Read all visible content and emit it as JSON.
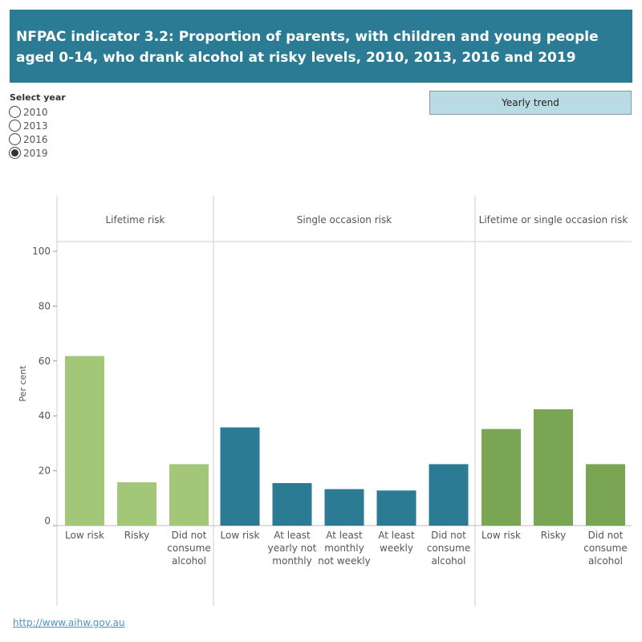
{
  "header": {
    "title": "NFPAC indicator 3.2: Proportion of parents, with children and young people aged 0-14, who drank alcohol at risky levels, 2010, 2013, 2016 and 2019"
  },
  "filter": {
    "label": "Select year",
    "options": [
      "2010",
      "2013",
      "2016",
      "2019"
    ],
    "selected": "2019"
  },
  "trend_button": {
    "label": "Yearly trend"
  },
  "footer": {
    "link": "http://www.aihw.gov.au"
  },
  "colors": {
    "light_green": "#a2c779",
    "teal": "#2a7b93",
    "green": "#7aa654"
  },
  "chart_data": {
    "type": "bar",
    "ylabel": "Per cent",
    "ylim": [
      0,
      100
    ],
    "yticks": [
      0,
      20,
      40,
      60,
      80,
      100
    ],
    "panels": [
      {
        "name": "Lifetime risk",
        "color": "#a2c779",
        "categories": [
          "Low risk",
          "Risky",
          "Did not consume alcohol"
        ],
        "category_lines": [
          [
            "Low risk"
          ],
          [
            "Risky"
          ],
          [
            "Did not",
            "consume",
            "alcohol"
          ]
        ],
        "values": [
          61.8,
          15.8,
          22.4
        ]
      },
      {
        "name": "Single occasion risk",
        "color": "#2a7b93",
        "categories": [
          "Low risk",
          "At least yearly not monthly",
          "At least monthly not weekly",
          "At least weekly",
          "Did not consume alcohol"
        ],
        "category_lines": [
          [
            "Low risk"
          ],
          [
            "At least",
            "yearly not",
            "monthly"
          ],
          [
            "At least",
            "monthly",
            "not weekly"
          ],
          [
            "At least",
            "weekly"
          ],
          [
            "Did not",
            "consume",
            "alcohol"
          ]
        ],
        "values": [
          35.8,
          15.5,
          13.3,
          12.8,
          22.4
        ]
      },
      {
        "name": "Lifetime or single occasion risk",
        "color": "#7aa654",
        "categories": [
          "Low risk",
          "Risky",
          "Did not consume alcohol"
        ],
        "category_lines": [
          [
            "Low risk"
          ],
          [
            "Risky"
          ],
          [
            "Did not",
            "consume",
            "alcohol"
          ]
        ],
        "values": [
          35.2,
          42.4,
          22.4
        ]
      }
    ]
  }
}
